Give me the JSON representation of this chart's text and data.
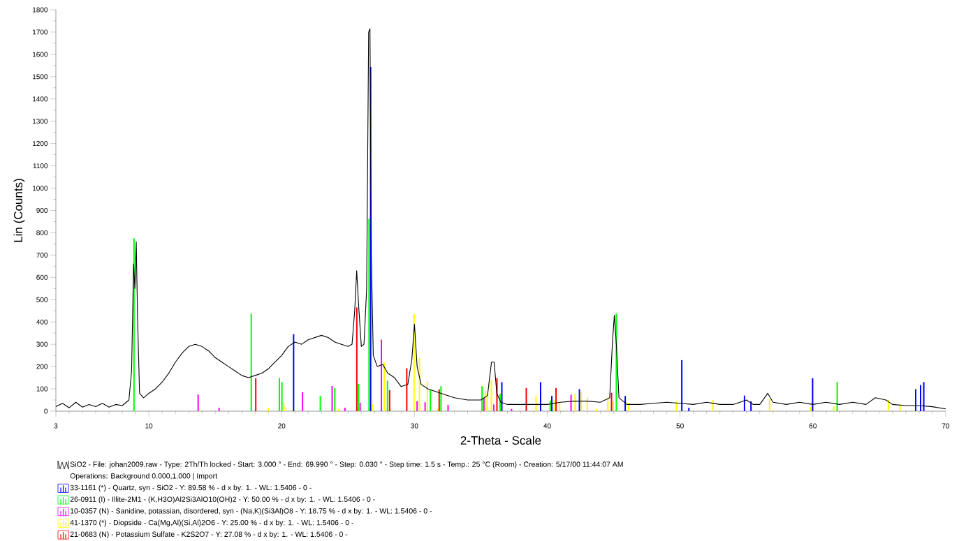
{
  "chart_data": {
    "type": "line",
    "xlabel": "2-Theta - Scale",
    "ylabel": "Lin (Counts)",
    "xlim": [
      3,
      70
    ],
    "ylim": [
      0,
      1800
    ],
    "xticks": [
      3,
      10,
      20,
      30,
      40,
      50,
      60,
      70
    ],
    "yticks": [
      0,
      100,
      200,
      300,
      400,
      500,
      600,
      700,
      800,
      900,
      1000,
      1100,
      1200,
      1300,
      1400,
      1500,
      1600,
      1700,
      1800
    ],
    "legend": "bottom",
    "annotations": [
      "Operations: Background 0.000,1.000 | Import"
    ],
    "series": [
      {
        "name": "SiO2 - File: johan2009.raw - Type: 2Th/Th locked - Start: 3.000 ° - End: 69.990 ° - Step: 0.030 ° - Step time: 1.5 s - Temp.: 25 °C (Room) - Creation: 5/17/00 11:44:07 AM",
        "color": "#000000",
        "x": [
          3,
          3.5,
          4,
          4.5,
          5,
          5.5,
          6,
          6.5,
          7,
          7.5,
          8,
          8.5,
          8.7,
          8.85,
          8.95,
          9.05,
          9.15,
          9.3,
          9.6,
          10,
          10.5,
          11,
          11.5,
          12,
          12.5,
          13,
          13.5,
          14,
          14.5,
          15,
          15.5,
          16,
          16.5,
          17,
          17.5,
          18,
          18.5,
          19,
          19.5,
          20,
          20.5,
          21,
          21.5,
          22,
          22.5,
          23,
          23.5,
          24,
          24.5,
          25,
          25.3,
          25.5,
          25.65,
          25.8,
          26,
          26.2,
          26.4,
          26.55,
          26.65,
          26.75,
          26.9,
          27.2,
          27.6,
          28,
          28.5,
          29,
          29.5,
          29.8,
          30,
          30.2,
          30.5,
          31,
          31.5,
          32,
          33,
          34,
          35,
          35.5,
          35.8,
          36,
          36.2,
          36.5,
          37,
          38,
          39,
          40,
          41,
          42,
          43,
          44,
          44.7,
          44.9,
          45.05,
          45.2,
          45.4,
          46,
          47,
          48,
          49,
          50,
          51,
          52,
          53,
          54,
          55,
          55.5,
          56,
          56.6,
          57,
          58,
          59,
          60,
          61,
          62,
          63,
          64,
          64.7,
          65.5,
          66,
          67,
          68,
          69,
          70
        ],
        "values": [
          20,
          35,
          15,
          40,
          18,
          30,
          20,
          35,
          18,
          30,
          25,
          50,
          180,
          660,
          550,
          760,
          420,
          80,
          60,
          80,
          100,
          130,
          170,
          220,
          260,
          290,
          300,
          290,
          270,
          240,
          220,
          200,
          180,
          160,
          150,
          160,
          170,
          190,
          220,
          250,
          290,
          310,
          300,
          320,
          330,
          340,
          330,
          310,
          300,
          290,
          300,
          450,
          630,
          470,
          290,
          300,
          550,
          1700,
          1715,
          700,
          250,
          200,
          210,
          170,
          150,
          110,
          120,
          230,
          390,
          200,
          120,
          100,
          90,
          80,
          60,
          50,
          50,
          70,
          220,
          220,
          80,
          40,
          30,
          30,
          30,
          30,
          40,
          45,
          45,
          40,
          60,
          300,
          430,
          300,
          60,
          30,
          30,
          35,
          40,
          35,
          30,
          40,
          30,
          30,
          50,
          30,
          30,
          80,
          40,
          30,
          40,
          30,
          40,
          30,
          40,
          30,
          60,
          50,
          30,
          25,
          25,
          20,
          10
        ]
      },
      {
        "type": "bar",
        "name": "33-1161 (*) - Quartz, syn - SiO2 - Y: 89.58 % - d x by: 1. - WL: 1.5406 - 0 -",
        "color": "#0000ff",
        "x": [
          20.9,
          26.7,
          36.58,
          39.5,
          40.34,
          42.42,
          45.87,
          50.13,
          50.66,
          54.85,
          55.34,
          59.98,
          67.74,
          68.11,
          68.35
        ],
        "values": [
          345,
          1543,
          130,
          130,
          68,
          99,
          68,
          229,
          15,
          70,
          44,
          148,
          99,
          117,
          130
        ]
      },
      {
        "type": "bar",
        "name": "26-0911 (I) - Illite-2M1 - (K,H3O)Al2Si3AlO10(OH)2 - Y: 50.00 % - d x by: 1. - WL: 1.5406 - 0 -",
        "color": "#00ff00",
        "x": [
          8.88,
          17.71,
          19.83,
          20.02,
          22.91,
          24.0,
          25.79,
          26.58,
          27.97,
          31.2,
          32.0,
          35.09,
          36.45,
          40.22,
          45.2,
          61.83
        ],
        "values": [
          775,
          438,
          148,
          130,
          69,
          104,
          122,
          862,
          137,
          96,
          112,
          112,
          78,
          47,
          438,
          130
        ]
      },
      {
        "type": "bar",
        "name": "10-0357 (N) - Sanidine, potassian, disordered, syn - (Na,K)(Si3Al)O8 - Y: 18.75 % - d x by: 1. - WL: 1.5406 - 0 -",
        "color": "#ff00ff",
        "x": [
          13.71,
          15.29,
          21.57,
          23.8,
          24.77,
          25.91,
          27.51,
          30.2,
          30.8,
          32.53,
          35.23,
          35.97,
          37.31,
          41.79
        ],
        "values": [
          75,
          15,
          85,
          113,
          15,
          38,
          321,
          45,
          40,
          28,
          60,
          30,
          10,
          74
        ]
      },
      {
        "type": "bar",
        "name": "41-1370 (*) - Diopside - Ca(Mg,Al)(Si,Al)2O6 - Y: 25.00 % - d x by: 1. - WL: 1.5406 - 0 -",
        "color": "#ffff00",
        "x": [
          13.84,
          19.0,
          20.14,
          20.27,
          24.3,
          26.82,
          27.72,
          29.97,
          30.38,
          30.97,
          31.75,
          35.35,
          35.47,
          35.79,
          39.15,
          40.51,
          40.93,
          42.1,
          42.56,
          43.02,
          43.72,
          44.56,
          44.97,
          46.13,
          49.73,
          52.48,
          56.74,
          59.85,
          61.57,
          65.69,
          66.56
        ],
        "values": [
          8,
          15,
          39,
          20,
          10,
          32,
          218,
          435,
          240,
          133,
          10,
          95,
          80,
          139,
          68,
          50,
          37,
          77,
          86,
          60,
          10,
          60,
          44,
          39,
          44,
          50,
          54,
          20,
          22,
          51,
          30
        ]
      },
      {
        "type": "bar",
        "name": "21-0683 (N) - Potassium Sulfate - K2S2O7 - Y: 27.08 % - d x by: 1. - WL: 1.5406 - 0 -",
        "color": "#ff0000",
        "x": [
          18.05,
          25.66,
          28.13,
          29.42,
          31.86,
          36.21,
          38.42,
          40.66,
          44.84
        ],
        "values": [
          148,
          465,
          94,
          192,
          98,
          148,
          104,
          104,
          82
        ]
      }
    ]
  }
}
